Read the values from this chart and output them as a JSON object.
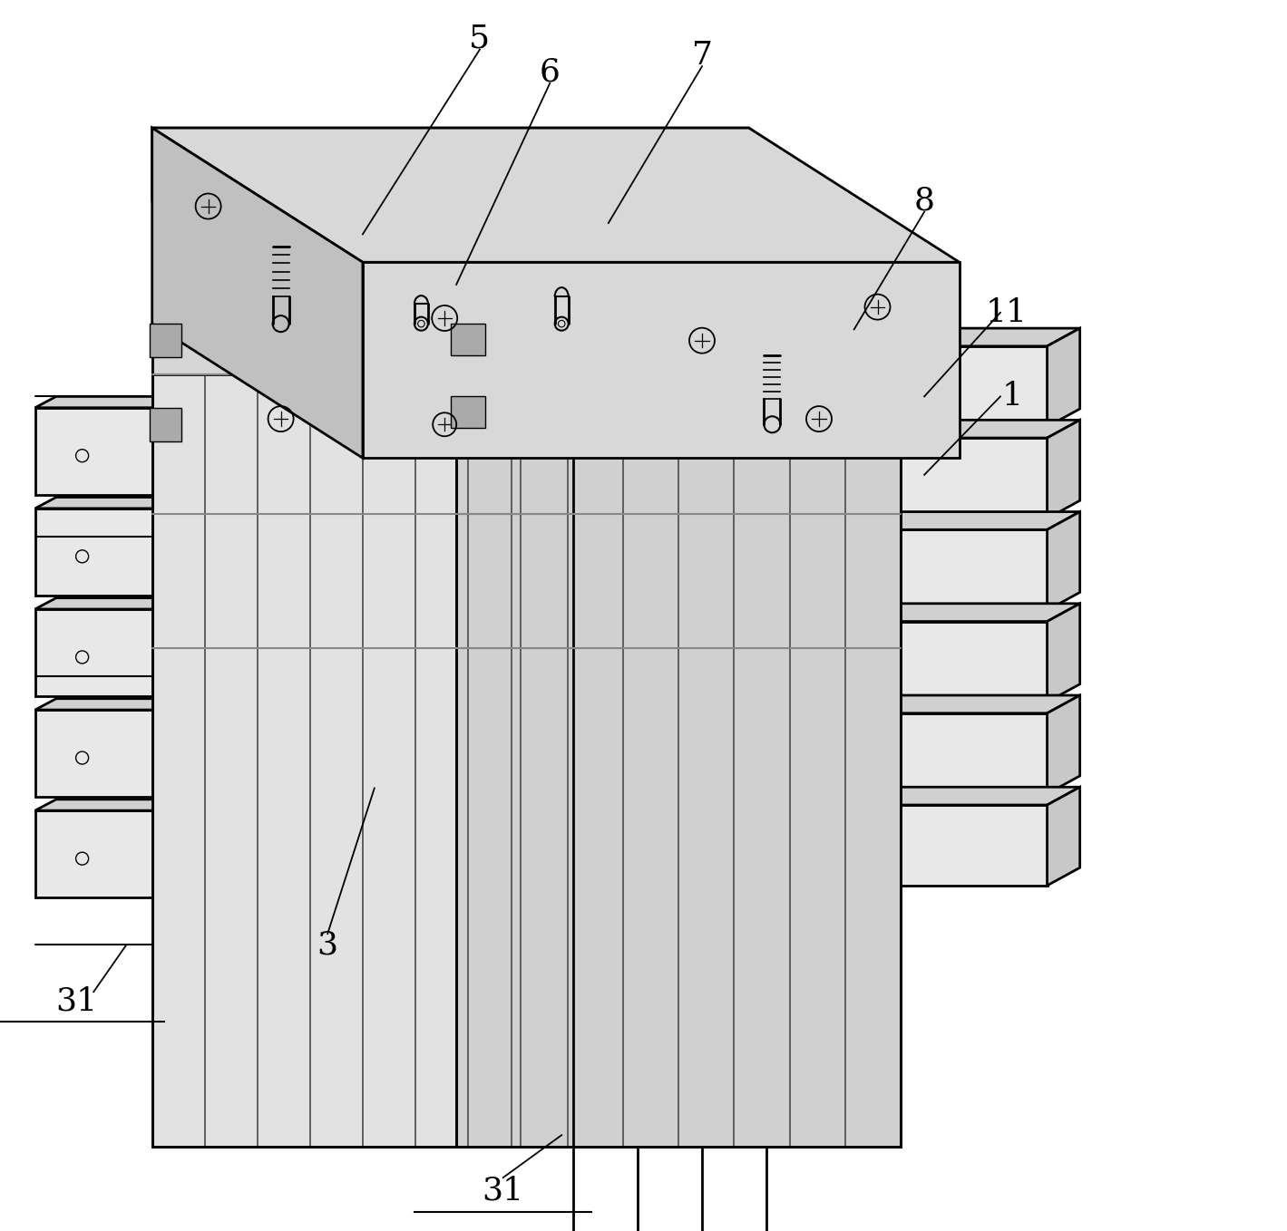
{
  "background_color": "#ffffff",
  "line_color": "#000000",
  "fig_w": 14.19,
  "fig_h": 13.58,
  "dpi": 100,
  "label_fontsize": 26,
  "top_face_color": "#d8d8d8",
  "front_left_color": "#e2e2e2",
  "front_right_color": "#d0d0d0",
  "cell_face_color": "#e8e8e8",
  "cell_top_color": "#d0d0d0",
  "cell_right_color": "#c8c8c8"
}
